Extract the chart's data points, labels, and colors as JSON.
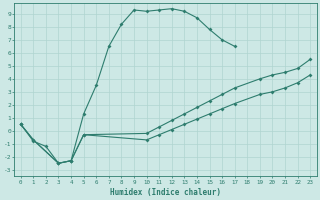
{
  "xlabel": "Humidex (Indice chaleur)",
  "xlim": [
    -0.5,
    23.5
  ],
  "ylim": [
    -3.5,
    9.8
  ],
  "bg_color": "#cde8e5",
  "line_color": "#2e7d6e",
  "grid_color": "#b0d5d0",
  "curve1": {
    "x": [
      0,
      1,
      2,
      3,
      4,
      5,
      6,
      7,
      8,
      9,
      10,
      11,
      12,
      13,
      14,
      15,
      16,
      17
    ],
    "y": [
      0.5,
      -0.8,
      -1.2,
      -2.5,
      -2.3,
      1.3,
      3.5,
      6.5,
      8.2,
      9.3,
      9.2,
      9.3,
      9.4,
      9.2,
      8.7,
      7.8,
      7.0,
      6.5
    ]
  },
  "curve2": {
    "x": [
      0,
      1,
      3,
      4,
      5,
      10,
      11,
      12,
      13,
      14,
      15,
      16,
      17,
      19,
      20,
      21,
      22,
      23
    ],
    "y": [
      0.5,
      -0.7,
      -2.5,
      -2.3,
      -0.3,
      -0.2,
      0.3,
      0.8,
      1.3,
      1.8,
      2.3,
      2.8,
      3.3,
      4.0,
      4.3,
      4.5,
      4.8,
      5.5
    ]
  },
  "curve3": {
    "x": [
      0,
      1,
      3,
      4,
      5,
      10,
      11,
      12,
      13,
      14,
      15,
      16,
      17,
      19,
      20,
      21,
      22,
      23
    ],
    "y": [
      0.5,
      -0.7,
      -2.5,
      -2.3,
      -0.3,
      -0.7,
      -0.3,
      0.1,
      0.5,
      0.9,
      1.3,
      1.7,
      2.1,
      2.8,
      3.0,
      3.3,
      3.7,
      4.3
    ]
  }
}
